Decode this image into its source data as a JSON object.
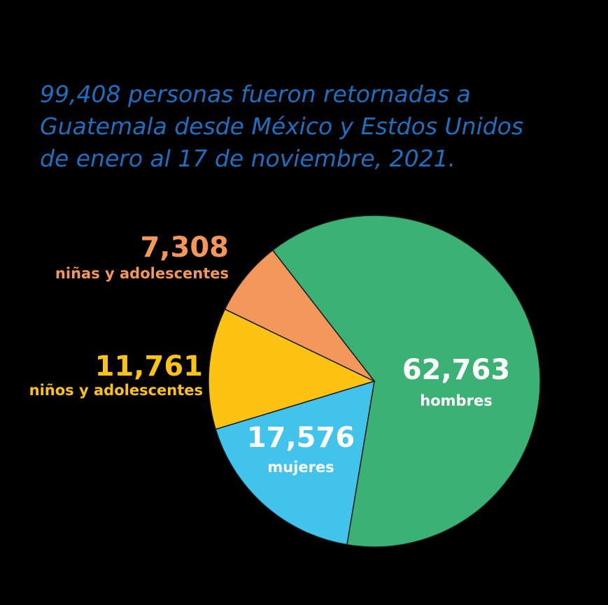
{
  "chart_data": {
    "type": "pie",
    "title": "99,408 personas fueron retornadas a Guatemala desde México y Estdos Unidos de enero al 17 de noviembre, 2021.",
    "categories": [
      "hombres",
      "mujeres",
      "niños y adolescentes",
      "niñas y adolescentes"
    ],
    "values": [
      62763,
      17576,
      11761,
      7308
    ],
    "value_labels": [
      "62,763",
      "17,576",
      "11,761",
      "7,308"
    ],
    "colors": [
      "#3bb273",
      "#41c3ec",
      "#fcc314",
      "#f4975a"
    ],
    "title_color": "#1f6fc0"
  }
}
